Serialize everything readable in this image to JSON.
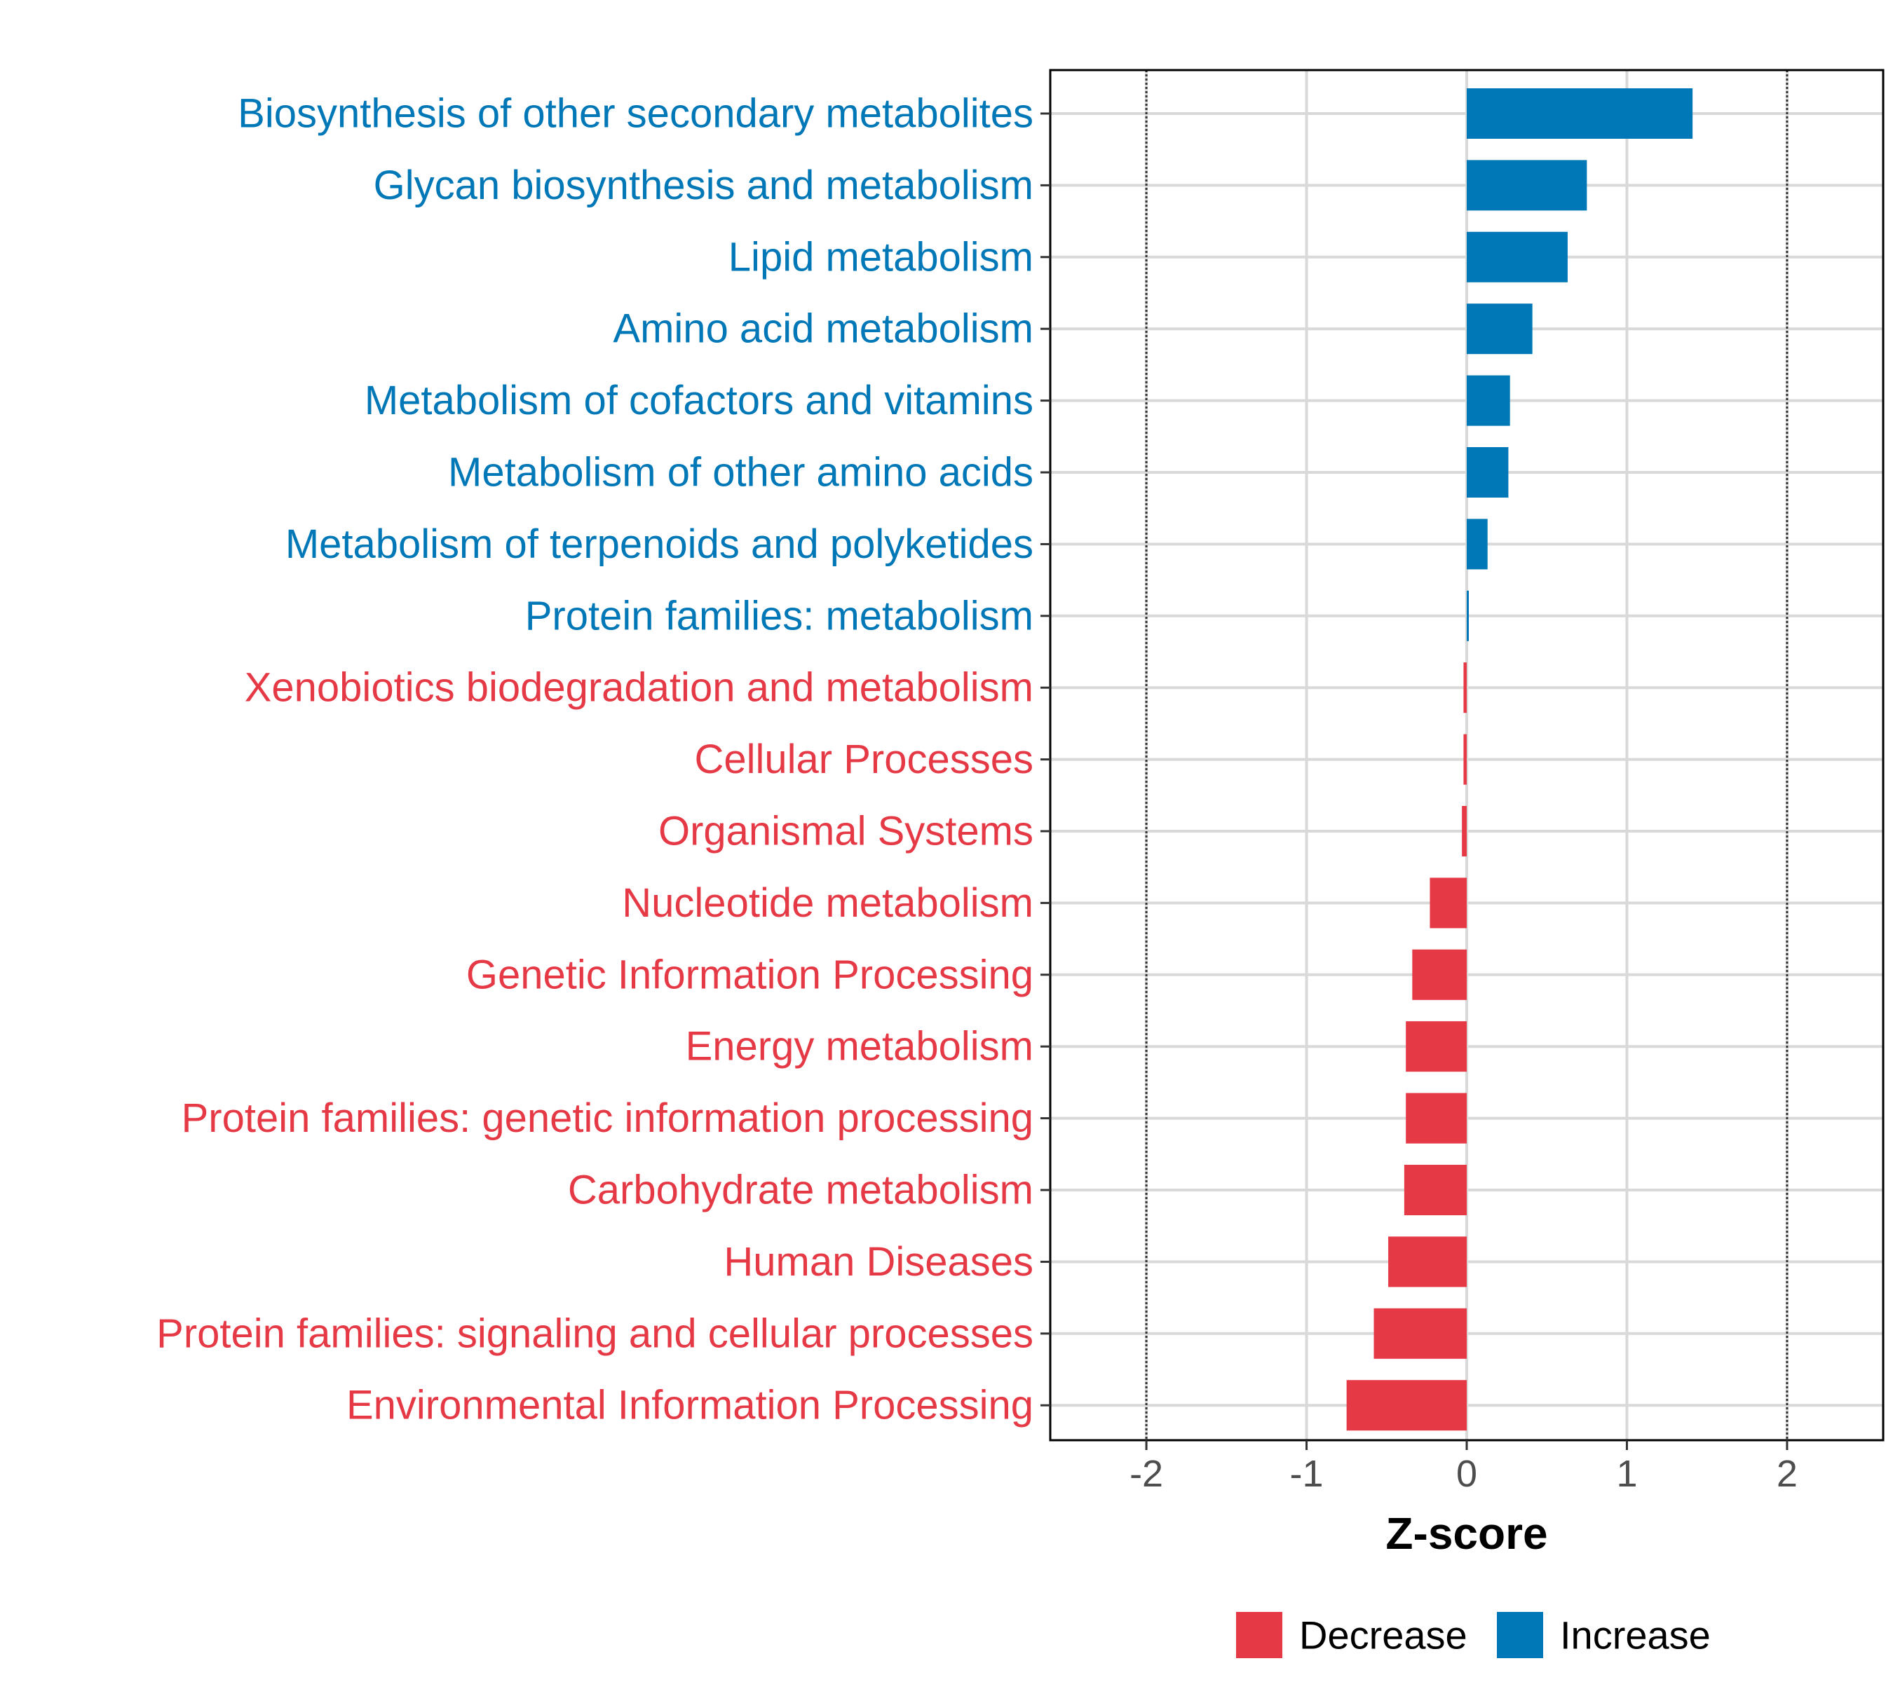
{
  "chart_data": {
    "type": "bar",
    "orientation": "horizontal",
    "xlabel": "Z-score",
    "xlim": [
      -2.6,
      2.6
    ],
    "xticks": [
      -2,
      -1,
      0,
      1,
      2
    ],
    "xtick_labels": [
      "-2",
      "-1",
      "0",
      "1",
      "2"
    ],
    "reference_lines": [
      -2,
      2
    ],
    "grid": true,
    "colors": {
      "Decrease": "#e63946",
      "Increase": "#0077b6"
    },
    "categories": [
      "Biosynthesis of other secondary metabolites",
      "Glycan biosynthesis and metabolism",
      "Lipid metabolism",
      "Amino acid metabolism",
      "Metabolism of cofactors and vitamins",
      "Metabolism of other amino acids",
      "Metabolism of terpenoids and polyketides",
      "Protein families: metabolism",
      "Xenobiotics biodegradation and metabolism",
      "Cellular Processes",
      "Organismal Systems",
      "Nucleotide metabolism",
      "Genetic Information Processing",
      "Energy metabolism",
      "Protein families: genetic information processing",
      "Carbohydrate metabolism",
      "Human Diseases",
      "Protein families: signaling and cellular processes",
      "Environmental Information Processing"
    ],
    "values": [
      1.41,
      0.75,
      0.63,
      0.41,
      0.27,
      0.26,
      0.13,
      0.005,
      -0.02,
      -0.02,
      -0.03,
      -0.23,
      -0.34,
      -0.38,
      -0.38,
      -0.39,
      -0.49,
      -0.58,
      -0.75
    ],
    "groups": [
      "Increase",
      "Increase",
      "Increase",
      "Increase",
      "Increase",
      "Increase",
      "Increase",
      "Increase",
      "Decrease",
      "Decrease",
      "Decrease",
      "Decrease",
      "Decrease",
      "Decrease",
      "Decrease",
      "Decrease",
      "Decrease",
      "Decrease",
      "Decrease"
    ],
    "legend": {
      "position": "bottom",
      "entries": [
        {
          "label": "Decrease"
        },
        {
          "label": "Increase"
        }
      ]
    }
  }
}
